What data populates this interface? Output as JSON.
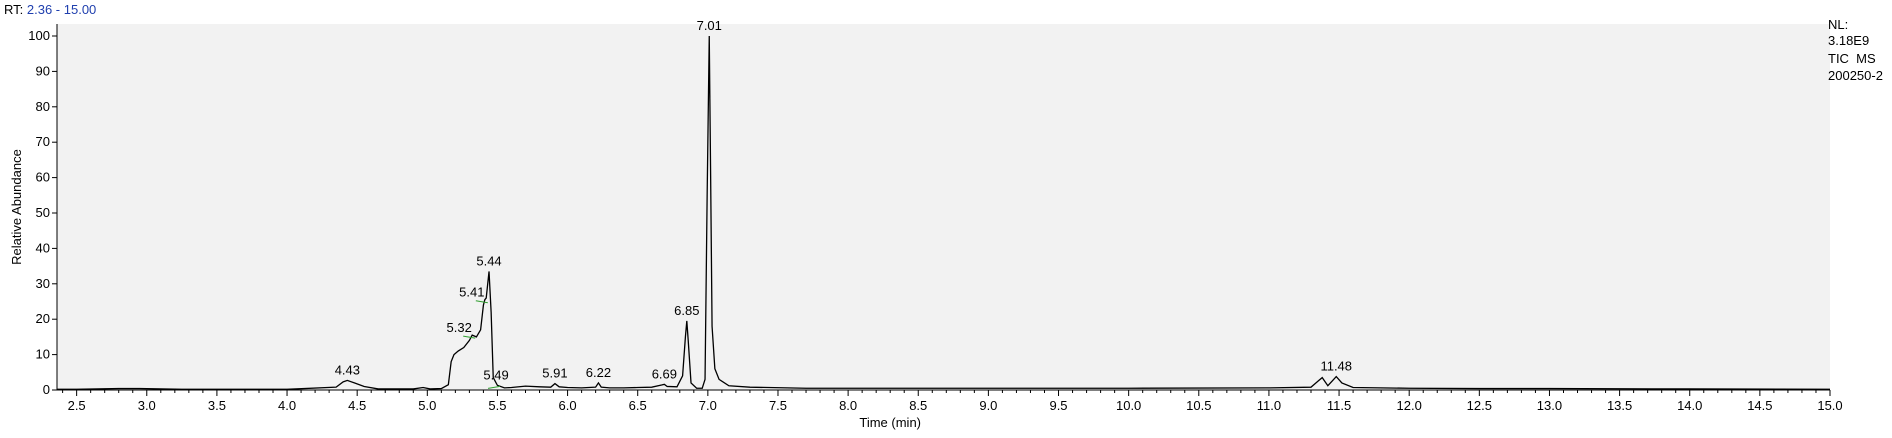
{
  "header": {
    "rt_label": "RT:",
    "rt_range": "2.36 - 15.00"
  },
  "info": {
    "nl_label": "NL:",
    "nl_value": "3.18E9",
    "scan_type": "TIC  MS",
    "file_name": "200250-2"
  },
  "chart_data": {
    "type": "line",
    "xlabel": "Time (min)",
    "ylabel": "Relative Abundance",
    "xlim": [
      2.36,
      15.0
    ],
    "ylim": [
      0,
      100
    ],
    "xticks": [
      2.5,
      3.0,
      3.5,
      4.0,
      4.5,
      5.0,
      5.5,
      6.0,
      6.5,
      7.0,
      7.5,
      8.0,
      8.5,
      9.0,
      9.5,
      10.0,
      10.5,
      11.0,
      11.5,
      12.0,
      12.5,
      13.0,
      13.5,
      14.0,
      14.5,
      15.0
    ],
    "xtick_labels": [
      "2.5",
      "3.0",
      "3.5",
      "4.0",
      "4.5",
      "5.0",
      "5.5",
      "6.0",
      "6.5",
      "7.0",
      "7.5",
      "8.0",
      "8.5",
      "9.0",
      "9.5",
      "10.0",
      "10.5",
      "11.0",
      "11.5",
      "12.0",
      "12.5",
      "13.0",
      "13.5",
      "14.0",
      "14.5",
      "15.0"
    ],
    "yticks": [
      0,
      10,
      20,
      30,
      40,
      50,
      60,
      70,
      80,
      90,
      100
    ],
    "ytick_labels": [
      "0",
      "10",
      "20",
      "30",
      "40",
      "50",
      "60",
      "70",
      "80",
      "90",
      "100"
    ],
    "grid": false,
    "series": [
      {
        "x": [
          2.36,
          2.5,
          2.8,
          2.95,
          3.25,
          3.5,
          4.0,
          4.35,
          4.4,
          4.43,
          4.48,
          4.55,
          4.65,
          4.9,
          4.97,
          5.02,
          5.1,
          5.15,
          5.17,
          5.19,
          5.22,
          5.26,
          5.3,
          5.32,
          5.35,
          5.38,
          5.4,
          5.41,
          5.42,
          5.44,
          5.455,
          5.47,
          5.5,
          5.55,
          5.6,
          5.7,
          5.8,
          5.88,
          5.91,
          5.94,
          6.0,
          6.1,
          6.2,
          6.22,
          6.24,
          6.3,
          6.4,
          6.5,
          6.6,
          6.67,
          6.69,
          6.71,
          6.78,
          6.82,
          6.84,
          6.85,
          6.86,
          6.88,
          6.92,
          6.96,
          6.98,
          6.995,
          7.01,
          7.02,
          7.03,
          7.05,
          7.08,
          7.15,
          7.3,
          7.7,
          8.0,
          9.0,
          10.0,
          11.0,
          11.3,
          11.35,
          11.38,
          11.42,
          11.45,
          11.48,
          11.52,
          11.6,
          12.0,
          12.5,
          13.0,
          14.0,
          15.0
        ],
        "y": [
          0.2,
          0.2,
          0.4,
          0.4,
          0.2,
          0.2,
          0.2,
          0.8,
          2.3,
          2.7,
          2.0,
          1.0,
          0.3,
          0.3,
          0.7,
          0.3,
          0.4,
          1.5,
          8.0,
          10.0,
          11.0,
          12.0,
          14.0,
          15.5,
          15.0,
          17.0,
          24.0,
          25.5,
          26.0,
          33.5,
          22.0,
          3.5,
          1.3,
          0.6,
          0.7,
          1.1,
          0.9,
          0.8,
          1.8,
          0.9,
          0.7,
          0.6,
          0.8,
          2.0,
          0.8,
          0.6,
          0.6,
          0.7,
          0.8,
          1.4,
          1.6,
          1.0,
          0.9,
          4.0,
          15.0,
          19.5,
          14.0,
          2.0,
          0.5,
          0.5,
          3.0,
          55.0,
          100.0,
          60.0,
          18.0,
          6.0,
          3.0,
          1.2,
          0.8,
          0.5,
          0.5,
          0.5,
          0.5,
          0.6,
          0.8,
          2.5,
          3.5,
          1.2,
          2.5,
          3.8,
          2.0,
          0.7,
          0.5,
          0.4,
          0.4,
          0.3,
          0.2
        ]
      }
    ],
    "peak_labels": [
      {
        "text": "4.43",
        "x": 4.43,
        "y": 2.7
      },
      {
        "text": "5.32",
        "x": 5.32,
        "y": 15.5
      },
      {
        "text": "5.41",
        "x": 5.41,
        "y": 25.5
      },
      {
        "text": "5.44",
        "x": 5.44,
        "y": 33.5
      },
      {
        "text": "5.49",
        "x": 5.49,
        "y": 1.3
      },
      {
        "text": "5.91",
        "x": 5.91,
        "y": 1.8
      },
      {
        "text": "6.22",
        "x": 6.22,
        "y": 2.0
      },
      {
        "text": "6.69",
        "x": 6.69,
        "y": 1.6
      },
      {
        "text": "6.85",
        "x": 6.85,
        "y": 19.5
      },
      {
        "text": "7.01",
        "x": 7.01,
        "y": 100.0
      },
      {
        "text": "11.48",
        "x": 11.48,
        "y": 3.8
      }
    ],
    "colors": {
      "trace": "#000000",
      "plot_background": "#f2f2f2",
      "header_value": "#1f3fae",
      "label_marker": "#2e9e2e"
    }
  }
}
